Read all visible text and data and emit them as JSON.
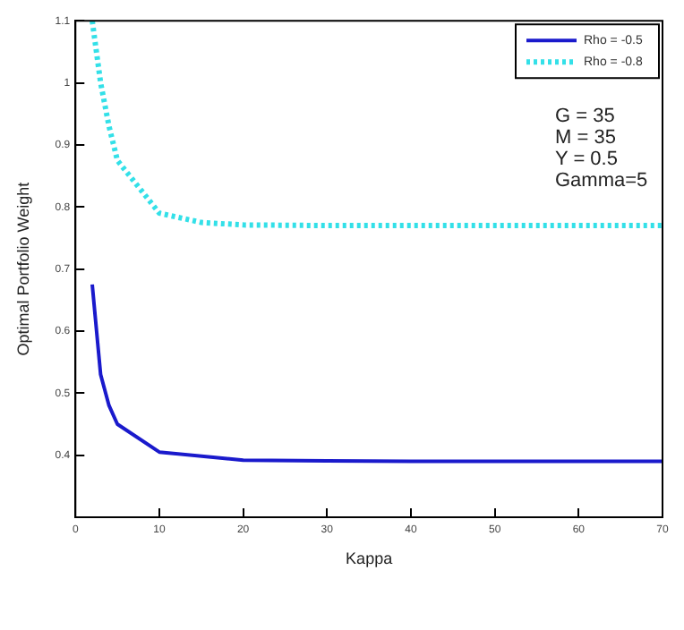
{
  "chart_data": {
    "type": "line",
    "xlabel": "Kappa",
    "ylabel": "Optimal Portfolio Weight",
    "xlim": [
      0,
      70
    ],
    "xticks": [
      0,
      10,
      20,
      30,
      40,
      50,
      60,
      70
    ],
    "ylim": [
      0.3,
      1.1
    ],
    "yticks": [
      0.4,
      0.5,
      0.6,
      0.7,
      0.8,
      0.9,
      1,
      1.1
    ],
    "grid": false,
    "legend": "top right",
    "marker": "none",
    "annotations": [
      "G = 35\nM = 35\nY = 0.5\nGamma=5"
    ],
    "series": [
      {
        "name": "Rho = -0.5",
        "color": "#1a1acc",
        "line_style": "solid",
        "x": [
          2,
          3,
          4,
          5,
          10,
          20,
          30,
          40,
          50,
          60,
          70
        ],
        "values": [
          0.675,
          0.53,
          0.48,
          0.45,
          0.405,
          0.392,
          0.391,
          0.39,
          0.39,
          0.39,
          0.39
        ]
      },
      {
        "name": "Rho = -0.8",
        "color": "#33e0e8",
        "line_style": "dotted",
        "x": [
          2,
          3,
          4,
          5,
          10,
          15,
          20,
          30,
          40,
          50,
          60,
          70
        ],
        "values": [
          1.1,
          1.0,
          0.93,
          0.875,
          0.79,
          0.775,
          0.771,
          0.77,
          0.77,
          0.77,
          0.77,
          0.77
        ]
      }
    ]
  }
}
